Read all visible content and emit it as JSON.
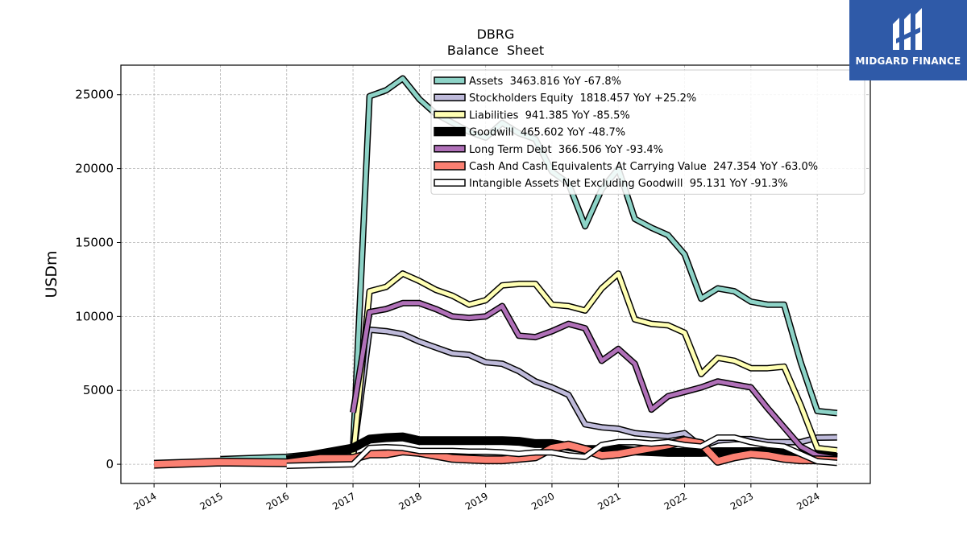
{
  "brand": {
    "name": "MIDGARD FINANCE",
    "bg_color": "#2f5aa8"
  },
  "chart_data": {
    "type": "line",
    "title": "DBRG",
    "subtitle": "Balance  Sheet",
    "xlabel": "",
    "ylabel": "USDm",
    "xlim": [
      2013.5,
      2024.8
    ],
    "ylim": [
      -1300,
      27000
    ],
    "x_ticks": [
      2014,
      2015,
      2016,
      2017,
      2018,
      2019,
      2020,
      2021,
      2022,
      2023,
      2024
    ],
    "y_ticks": [
      0,
      5000,
      10000,
      15000,
      20000,
      25000
    ],
    "grid": true,
    "legend_position": "top-right",
    "series": [
      {
        "name": "Assets",
        "legend_label": "Assets  3463.816 YoY -67.8%",
        "color": "#8dd3c7",
        "width": 5,
        "x": [
          2015.0,
          2016.0,
          2017.0,
          2017.25,
          2017.5,
          2017.75,
          2018.0,
          2018.25,
          2018.5,
          2018.75,
          2019.0,
          2019.25,
          2019.5,
          2019.75,
          2020.0,
          2020.25,
          2020.5,
          2020.75,
          2021.0,
          2021.25,
          2021.5,
          2021.75,
          2022.0,
          2022.25,
          2022.5,
          2022.75,
          2023.0,
          2023.25,
          2023.5,
          2023.75,
          2024.0,
          2024.3
        ],
        "y": [
          350,
          500,
          950,
          24900,
          25300,
          26100,
          24700,
          23700,
          23100,
          22500,
          22100,
          23100,
          22400,
          22000,
          19800,
          19000,
          16100,
          18600,
          20000,
          16600,
          16000,
          15500,
          14200,
          11200,
          11900,
          11700,
          11000,
          10800,
          10800,
          6900,
          3600,
          3460
        ]
      },
      {
        "name": "Stockholders Equity",
        "legend_label": "Stockholders Equity  1818.457 YoY +25.2%",
        "color": "#bebada",
        "width": 5,
        "x": [
          2016.0,
          2017.0,
          2017.25,
          2017.5,
          2017.75,
          2018.0,
          2018.25,
          2018.5,
          2018.75,
          2019.0,
          2019.25,
          2019.5,
          2019.75,
          2020.0,
          2020.25,
          2020.5,
          2020.75,
          2021.0,
          2021.25,
          2021.5,
          2021.75,
          2022.0,
          2022.25,
          2022.5,
          2022.75,
          2023.0,
          2023.25,
          2023.5,
          2023.75,
          2024.0,
          2024.3
        ],
        "y": [
          250,
          500,
          9100,
          9000,
          8800,
          8300,
          7900,
          7500,
          7400,
          6900,
          6800,
          6300,
          5600,
          5200,
          4700,
          2700,
          2500,
          2400,
          2100,
          2000,
          1900,
          2100,
          1200,
          1600,
          1700,
          1700,
          1500,
          1500,
          1500,
          1800,
          1818
        ]
      },
      {
        "name": "Liabilities",
        "legend_label": "Liabilities  941.385 YoY -85.5%",
        "color": "#ffffb3",
        "width": 5,
        "x": [
          2017.0,
          2017.25,
          2017.5,
          2017.75,
          2018.0,
          2018.25,
          2018.5,
          2018.75,
          2019.0,
          2019.25,
          2019.5,
          2019.75,
          2020.0,
          2020.25,
          2020.5,
          2020.75,
          2021.0,
          2021.25,
          2021.5,
          2021.75,
          2022.0,
          2022.25,
          2022.5,
          2022.75,
          2023.0,
          2023.25,
          2023.5,
          2023.75,
          2024.0,
          2024.3
        ],
        "y": [
          450,
          11700,
          12000,
          12900,
          12400,
          11800,
          11400,
          10800,
          11100,
          12100,
          12200,
          12200,
          10800,
          10700,
          10400,
          11900,
          12900,
          9800,
          9500,
          9400,
          8900,
          6100,
          7200,
          7000,
          6500,
          6500,
          6600,
          4000,
          1100,
          941
        ]
      },
      {
        "name": "Goodwill",
        "legend_label": "Goodwill  465.602 YoY -48.7%",
        "color": "#000000",
        "width": 8,
        "x": [
          2016.0,
          2017.0,
          2017.25,
          2017.5,
          2017.75,
          2018.0,
          2018.25,
          2018.5,
          2018.75,
          2019.0,
          2019.25,
          2019.5,
          2019.75,
          2020.0,
          2020.25,
          2020.5,
          2020.75,
          2021.0,
          2021.25,
          2021.5,
          2021.75,
          2022.0,
          2022.25,
          2022.5,
          2022.75,
          2023.0,
          2023.25,
          2023.5,
          2023.75,
          2024.0,
          2024.3
        ],
        "y": [
          300,
          1100,
          1700,
          1800,
          1850,
          1600,
          1600,
          1600,
          1600,
          1600,
          1600,
          1550,
          1400,
          1400,
          1200,
          1000,
          1000,
          1000,
          900,
          850,
          800,
          800,
          800,
          850,
          850,
          850,
          850,
          700,
          700,
          650,
          466
        ]
      },
      {
        "name": "Long Term Debt",
        "legend_label": "Long Term Debt  366.506 YoY -93.4%",
        "color": "#b070b8",
        "width": 5,
        "x": [
          2017.0,
          2017.25,
          2017.5,
          2017.75,
          2018.0,
          2018.25,
          2018.5,
          2018.75,
          2019.0,
          2019.25,
          2019.5,
          2019.75,
          2020.0,
          2020.25,
          2020.5,
          2020.75,
          2021.0,
          2021.25,
          2021.5,
          2021.75,
          2022.0,
          2022.25,
          2022.5,
          2022.75,
          2023.0,
          2023.25,
          2023.5,
          2023.75,
          2024.0,
          2024.3
        ],
        "y": [
          3500,
          10300,
          10500,
          10900,
          10900,
          10500,
          10000,
          9900,
          10000,
          10700,
          8700,
          8600,
          9000,
          9500,
          9200,
          7000,
          7800,
          6800,
          3700,
          4600,
          4900,
          5200,
          5600,
          5400,
          5200,
          3800,
          2500,
          1200,
          600,
          367
        ]
      },
      {
        "name": "Cash And Cash Equivalents At Carrying Value",
        "legend_label": "Cash And Cash Equivalents At Carrying Value  247.354 YoY -63.0%",
        "color": "#fb8072",
        "width": 8,
        "x": [
          2014.0,
          2015.0,
          2016.0,
          2016.5,
          2017.0,
          2017.25,
          2017.5,
          2017.75,
          2018.0,
          2018.25,
          2018.5,
          2018.75,
          2019.0,
          2019.25,
          2019.5,
          2019.75,
          2020.0,
          2020.25,
          2020.5,
          2020.75,
          2021.0,
          2021.25,
          2021.5,
          2021.75,
          2022.0,
          2022.25,
          2022.5,
          2022.75,
          2023.0,
          2023.25,
          2023.5,
          2023.75,
          2024.0,
          2024.3
        ],
        "y": [
          0,
          150,
          100,
          400,
          400,
          700,
          700,
          900,
          800,
          600,
          400,
          350,
          300,
          300,
          400,
          500,
          1100,
          1300,
          1000,
          600,
          700,
          900,
          1100,
          1300,
          1600,
          1400,
          200,
          500,
          700,
          600,
          400,
          300,
          300,
          247
        ]
      },
      {
        "name": "Intangible Assets Net Excluding Goodwill",
        "legend_label": "Intangible Assets Net Excluding Goodwill  95.131 YoY -91.3%",
        "color": "#ffffff",
        "width": 5,
        "x": [
          2016.0,
          2017.0,
          2017.25,
          2017.5,
          2017.75,
          2018.0,
          2018.25,
          2018.5,
          2018.75,
          2019.0,
          2019.25,
          2019.5,
          2019.75,
          2020.0,
          2020.25,
          2020.5,
          2020.75,
          2021.0,
          2021.25,
          2021.5,
          2021.75,
          2022.0,
          2022.25,
          2022.5,
          2022.75,
          2023.0,
          2023.25,
          2023.5,
          2023.75,
          2024.0,
          2024.3
        ],
        "y": [
          -100,
          0,
          1100,
          1150,
          1100,
          900,
          900,
          900,
          850,
          850,
          800,
          700,
          800,
          800,
          600,
          500,
          1300,
          1500,
          1500,
          1400,
          1500,
          1300,
          1200,
          1800,
          1800,
          1500,
          1300,
          1200,
          700,
          200,
          95
        ]
      }
    ]
  }
}
